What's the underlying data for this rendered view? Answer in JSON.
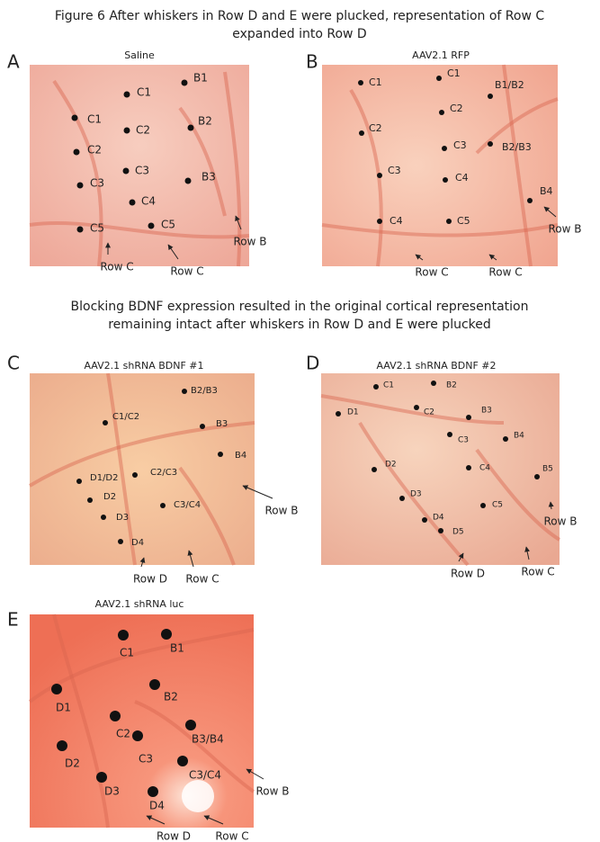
{
  "title": {
    "lines": [
      "Figure 6  After whiskers in Row D and E were plucked, representation of Row C",
      "expanded into Row D"
    ]
  },
  "subtitle": {
    "lines": [
      "Blocking BDNF expression resulted in the original cortical representation",
      "remaining intact after whiskers in Row D and E were plucked"
    ]
  },
  "panels": [
    {
      "letter": "A",
      "title": "Saline",
      "dots": [
        "C1",
        "C1",
        "C2",
        "C2",
        "C3",
        "C3",
        "C4",
        "C5",
        "C5",
        "B1",
        "B2",
        "B3"
      ],
      "rows": [
        "Row C",
        "Row C",
        "Row B"
      ]
    },
    {
      "letter": "B",
      "title": "AAV2.1 RFP",
      "dots": [
        "C1",
        "C1",
        "B1/B2",
        "C2",
        "C2",
        "C3",
        "B2/B3",
        "C3",
        "C4",
        "B4",
        "C4",
        "C5"
      ],
      "rows": [
        "Row C",
        "Row C",
        "Row B"
      ]
    },
    {
      "letter": "C",
      "title": "AAV2.1 shRNA BDNF #1",
      "dots": [
        "B2/B3",
        "C1/C2",
        "B3",
        "B4",
        "D1/D2",
        "C2/C3",
        "D2",
        "C3/C4",
        "D3",
        "D4"
      ],
      "rows": [
        "Row B",
        "Row D",
        "Row C"
      ]
    },
    {
      "letter": "D",
      "title": "AAV2.1 shRNA BDNF #2",
      "dots": [
        "C1",
        "B2",
        "D1",
        "C2",
        "B3",
        "C3",
        "B4",
        "D2",
        "C4",
        "B5",
        "D3",
        "C5",
        "D4",
        "D5"
      ],
      "rows": [
        "Row B",
        "Row D",
        "Row C"
      ]
    },
    {
      "letter": "E",
      "title": "AAV2.1 shRNA luc",
      "dots": [
        "C1",
        "B1",
        "D1",
        "B2",
        "C2",
        "B3/B4",
        "D2",
        "C3",
        "C3/C4",
        "D3",
        "D4"
      ],
      "rows": [
        "Row B",
        "Row D",
        "Row C"
      ]
    }
  ]
}
